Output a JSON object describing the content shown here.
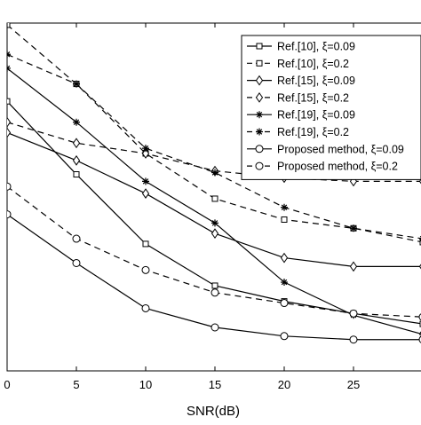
{
  "chart_data": {
    "type": "line",
    "xlabel": "SNR(dB)",
    "x": [
      0,
      5,
      10,
      15,
      20,
      25,
      30
    ],
    "xticks": [
      0,
      5,
      10,
      15,
      20,
      25
    ],
    "xlim": [
      0,
      30
    ],
    "ylim": [
      0,
      100
    ],
    "legend_position": "top-right",
    "grid": false,
    "series": [
      {
        "name": "Ref.[10], ξ=0.09",
        "marker": "square",
        "dash": "solid",
        "values": [
          77.5,
          56.5,
          36.5,
          24.5,
          20,
          16.5,
          13.5
        ]
      },
      {
        "name": "Ref.[10], ξ=0.2",
        "marker": "square",
        "dash": "dashed",
        "values": [
          99.5,
          82.5,
          62.5,
          49.5,
          43.5,
          41,
          37
        ]
      },
      {
        "name": "Ref.[15], ξ=0.09",
        "marker": "diamond",
        "dash": "solid",
        "values": [
          68.5,
          60.5,
          51,
          39.5,
          32.5,
          30,
          30
        ]
      },
      {
        "name": "Ref.[15], ξ=0.2",
        "marker": "diamond",
        "dash": "dashed",
        "values": [
          71.5,
          65.5,
          62.5,
          57.5,
          55.5,
          54.5,
          54.5
        ]
      },
      {
        "name": "Ref.[19], ξ=0.09",
        "marker": "star",
        "dash": "solid",
        "values": [
          87,
          71.5,
          54.5,
          42.5,
          25.5,
          16,
          10.5
        ]
      },
      {
        "name": "Ref.[19], ξ=0.2",
        "marker": "star",
        "dash": "dashed",
        "values": [
          91,
          82.5,
          64,
          57,
          47,
          41,
          38
        ]
      },
      {
        "name": "Proposed method, ξ=0.09",
        "marker": "circle",
        "dash": "solid",
        "values": [
          45,
          31,
          18,
          12.5,
          10,
          9,
          9
        ]
      },
      {
        "name": "Proposed method, ξ=0.2",
        "marker": "circle",
        "dash": "dashed",
        "values": [
          53,
          38,
          29,
          22.5,
          19.5,
          16.5,
          15.5
        ]
      }
    ]
  }
}
